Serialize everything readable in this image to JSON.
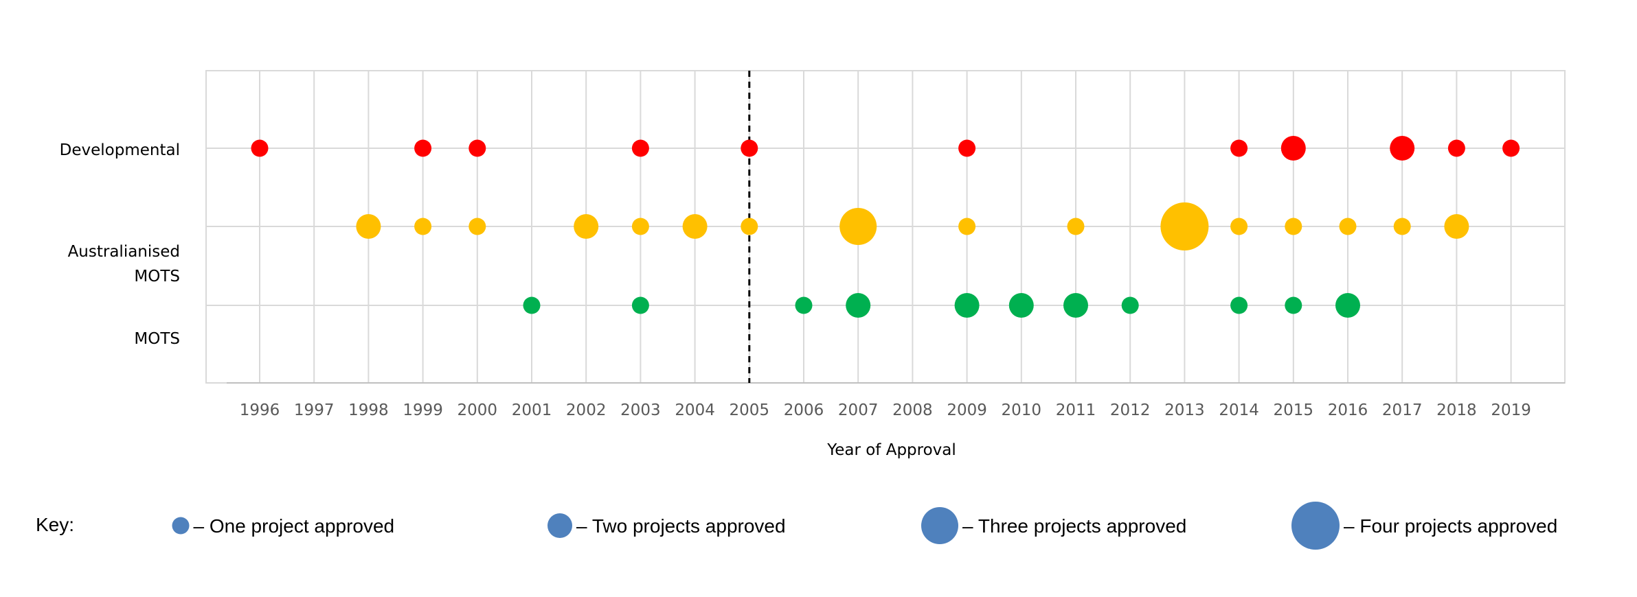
{
  "chart_data": {
    "type": "scatter",
    "xlabel": "Year of Approval",
    "categories": [
      "Developmental",
      "Australianised MOTS",
      "MOTS"
    ],
    "x_ticks": [
      1996,
      1997,
      1998,
      1999,
      2000,
      2001,
      2002,
      2003,
      2004,
      2005,
      2006,
      2007,
      2008,
      2009,
      2010,
      2011,
      2012,
      2013,
      2014,
      2015,
      2016,
      2017,
      2018,
      2019
    ],
    "xlim": [
      1995,
      2020
    ],
    "grid": true,
    "reference_line": {
      "x": 2005,
      "style": "dashed",
      "color": "#000000"
    },
    "series": [
      {
        "name": "Developmental",
        "color": "#FF0000",
        "points": [
          {
            "x": 1996,
            "count": 1
          },
          {
            "x": 1999,
            "count": 1
          },
          {
            "x": 2000,
            "count": 1
          },
          {
            "x": 2003,
            "count": 1
          },
          {
            "x": 2005,
            "count": 1
          },
          {
            "x": 2009,
            "count": 1
          },
          {
            "x": 2014,
            "count": 1
          },
          {
            "x": 2015,
            "count": 2
          },
          {
            "x": 2017,
            "count": 2
          },
          {
            "x": 2018,
            "count": 1
          },
          {
            "x": 2019,
            "count": 1
          }
        ]
      },
      {
        "name": "Australianised MOTS",
        "color": "#FFC000",
        "points": [
          {
            "x": 1998,
            "count": 2
          },
          {
            "x": 1999,
            "count": 1
          },
          {
            "x": 2000,
            "count": 1
          },
          {
            "x": 2002,
            "count": 2
          },
          {
            "x": 2003,
            "count": 1
          },
          {
            "x": 2004,
            "count": 2
          },
          {
            "x": 2005,
            "count": 1
          },
          {
            "x": 2007,
            "count": 3
          },
          {
            "x": 2009,
            "count": 1
          },
          {
            "x": 2011,
            "count": 1
          },
          {
            "x": 2013,
            "count": 4
          },
          {
            "x": 2014,
            "count": 1
          },
          {
            "x": 2015,
            "count": 1
          },
          {
            "x": 2016,
            "count": 1
          },
          {
            "x": 2017,
            "count": 1
          },
          {
            "x": 2018,
            "count": 2
          }
        ]
      },
      {
        "name": "MOTS",
        "color": "#00B050",
        "points": [
          {
            "x": 2001,
            "count": 1
          },
          {
            "x": 2003,
            "count": 1
          },
          {
            "x": 2006,
            "count": 1
          },
          {
            "x": 2007,
            "count": 2
          },
          {
            "x": 2009,
            "count": 2
          },
          {
            "x": 2010,
            "count": 2
          },
          {
            "x": 2011,
            "count": 2
          },
          {
            "x": 2012,
            "count": 1
          },
          {
            "x": 2014,
            "count": 1
          },
          {
            "x": 2015,
            "count": 1
          },
          {
            "x": 2016,
            "count": 2
          }
        ]
      }
    ]
  },
  "row_labels": {
    "developmental": "Developmental",
    "aus_mots_line1": "Australianised",
    "aus_mots_line2": "MOTS",
    "mots": "MOTS"
  },
  "key": {
    "title": "Key:",
    "color": "#4F81BD",
    "items": [
      {
        "count": 1,
        "label": "– One project approved"
      },
      {
        "count": 2,
        "label": "– Two projects approved"
      },
      {
        "count": 3,
        "label": "– Three projects approved"
      },
      {
        "count": 4,
        "label": "– Four projects approved"
      }
    ]
  }
}
